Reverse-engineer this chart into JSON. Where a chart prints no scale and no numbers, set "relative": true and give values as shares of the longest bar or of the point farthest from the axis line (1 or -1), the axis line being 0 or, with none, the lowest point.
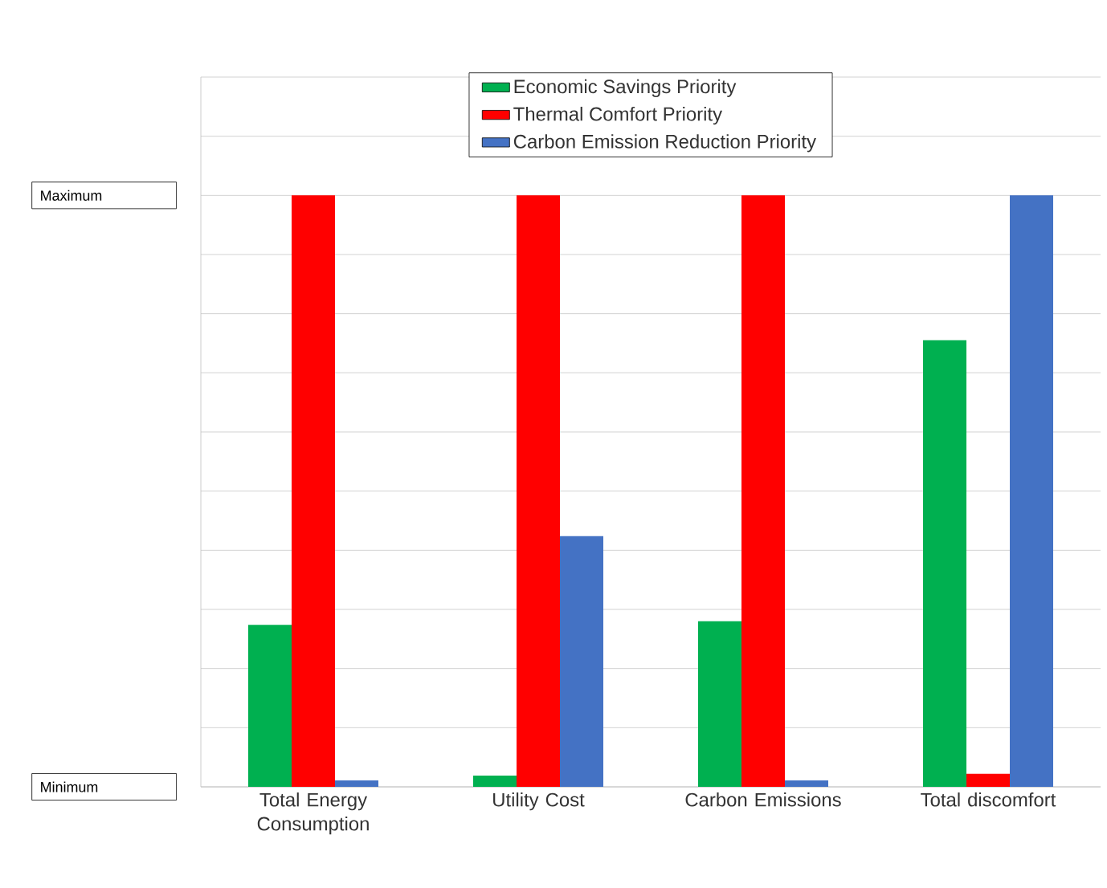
{
  "chart_data": {
    "type": "bar",
    "categories": [
      "Total Energy Consumption",
      "Utility Cost",
      "Carbon Emissions",
      "Total discomfort"
    ],
    "series": [
      {
        "name": "Economic Savings Priority",
        "color": "#00b050",
        "values": [
          0.274,
          0.019,
          0.28,
          0.755
        ]
      },
      {
        "name": "Thermal Comfort Priority",
        "color": "#ff0000",
        "values": [
          1,
          1,
          1,
          0.022
        ]
      },
      {
        "name": "Carbon Emission Reduction Priority",
        "color": "#4472c4",
        "values": [
          0.011,
          0.424,
          0.011,
          1
        ]
      }
    ],
    "relative": true,
    "annotations": [
      "Maximum",
      "Minimum"
    ],
    "grid": "y",
    "legend": "top"
  }
}
